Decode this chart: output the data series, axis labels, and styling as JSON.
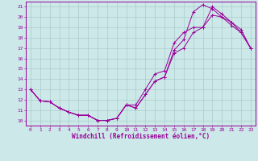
{
  "xlabel": "Windchill (Refroidissement éolien,°C)",
  "xlim": [
    -0.5,
    23.5
  ],
  "ylim": [
    9.5,
    21.5
  ],
  "xticks": [
    0,
    1,
    2,
    3,
    4,
    5,
    6,
    7,
    8,
    9,
    10,
    11,
    12,
    13,
    14,
    15,
    16,
    17,
    18,
    19,
    20,
    21,
    22,
    23
  ],
  "yticks": [
    10,
    11,
    12,
    13,
    14,
    15,
    16,
    17,
    18,
    19,
    20,
    21
  ],
  "bg_color": "#cce8e8",
  "grid_color": "#aacccc",
  "line_color": "#990099",
  "line1_x": [
    0,
    1,
    2,
    3,
    4,
    5,
    6,
    7,
    8,
    9,
    10,
    11,
    12,
    13,
    14,
    15,
    16,
    17,
    18,
    19,
    20,
    21,
    22,
    23
  ],
  "line1_y": [
    13.0,
    11.9,
    11.8,
    11.2,
    10.8,
    10.5,
    10.5,
    10.0,
    10.0,
    10.2,
    11.5,
    11.2,
    12.5,
    13.8,
    14.2,
    16.8,
    17.8,
    20.5,
    21.2,
    20.8,
    20.0,
    19.2,
    18.5,
    17.0
  ],
  "line2_x": [
    0,
    1,
    2,
    3,
    4,
    5,
    6,
    7,
    8,
    9,
    10,
    11,
    12,
    13,
    14,
    15,
    16,
    17,
    18,
    19,
    20,
    21,
    22,
    23
  ],
  "line2_y": [
    13.0,
    11.9,
    11.8,
    11.2,
    10.8,
    10.5,
    10.5,
    10.0,
    10.0,
    10.2,
    11.5,
    11.5,
    13.0,
    14.5,
    14.8,
    17.5,
    18.5,
    19.0,
    19.0,
    21.0,
    20.3,
    19.5,
    18.8,
    17.0
  ],
  "line3_x": [
    0,
    1,
    2,
    3,
    4,
    5,
    6,
    7,
    8,
    9,
    10,
    11,
    12,
    13,
    14,
    15,
    16,
    17,
    18,
    19,
    20,
    21,
    22,
    23
  ],
  "line3_y": [
    13.0,
    11.9,
    11.8,
    11.2,
    10.8,
    10.5,
    10.5,
    10.0,
    10.0,
    10.2,
    11.5,
    11.2,
    12.5,
    13.8,
    14.2,
    16.5,
    17.0,
    18.5,
    19.0,
    20.2,
    20.0,
    19.5,
    18.5,
    17.0
  ]
}
